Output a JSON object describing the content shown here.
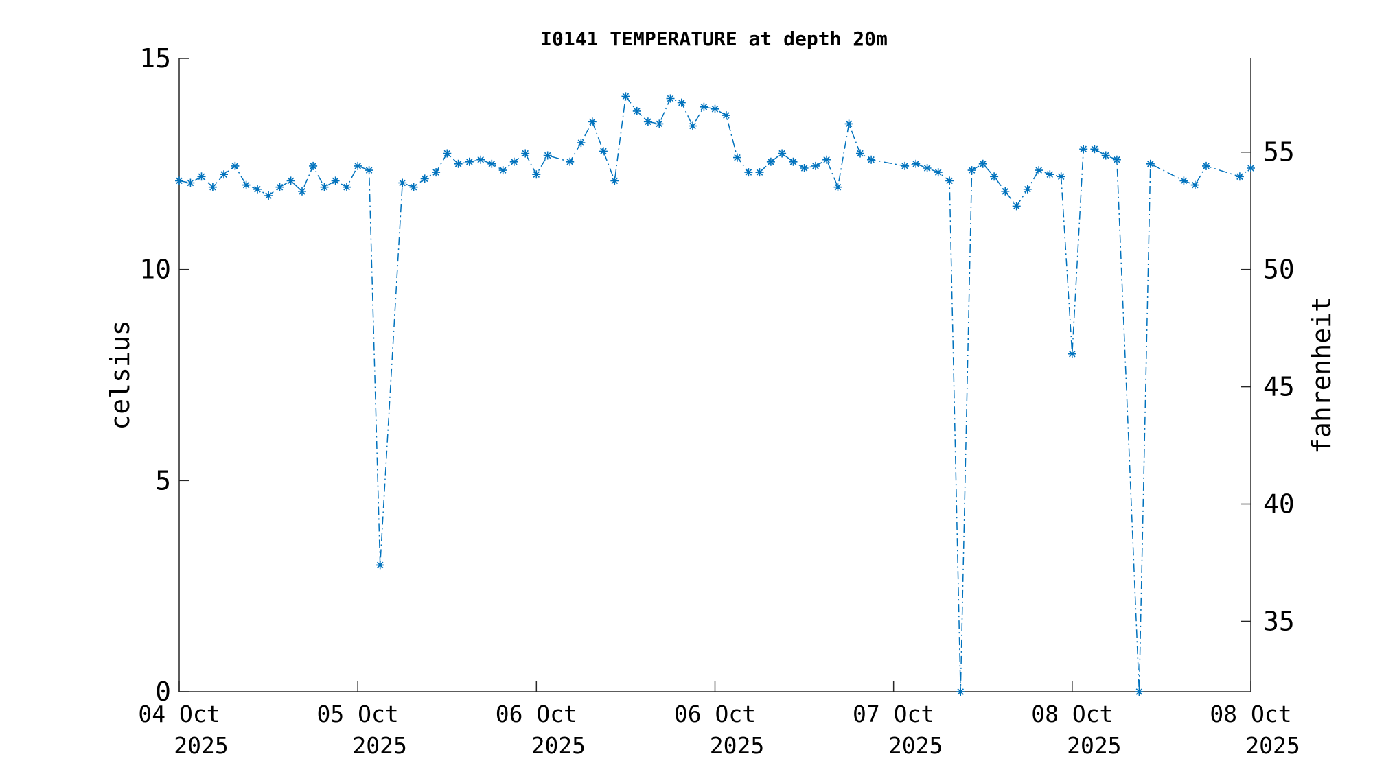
{
  "chart_data": {
    "type": "line",
    "title": "I0141 TEMPERATURE at depth 20m",
    "ylabel": "celsius",
    "ylabel_right": "fahrenheit",
    "ylim": [
      0,
      15
    ],
    "yticks": [
      "0",
      "5",
      "10",
      "15"
    ],
    "ylim_right": [
      32,
      59
    ],
    "yticks_right": [
      "35",
      "40",
      "45",
      "50",
      "55"
    ],
    "xticks": [
      {
        "day": "04 Oct",
        "year": "2025"
      },
      {
        "day": "05 Oct",
        "year": "2025"
      },
      {
        "day": "06 Oct",
        "year": "2025"
      },
      {
        "day": "06 Oct",
        "year": "2025"
      },
      {
        "day": "07 Oct",
        "year": "2025"
      },
      {
        "day": "08 Oct",
        "year": "2025"
      },
      {
        "day": "08 Oct",
        "year": "2025"
      }
    ],
    "grid": false,
    "series_color": "#0072BD",
    "marker": "asterisk",
    "line_style": "dash-dot",
    "series": [
      {
        "x": [
          0,
          0.063,
          0.125,
          0.188,
          0.25,
          0.313,
          0.375,
          0.438,
          0.5,
          0.563,
          0.625,
          0.688,
          0.75,
          0.813,
          0.875,
          0.938,
          1.0,
          1.063,
          1.125,
          1.25,
          1.313,
          1.375,
          1.438,
          1.5,
          1.563,
          1.625,
          1.688,
          1.75,
          1.813,
          1.875,
          1.938,
          2.0,
          2.063,
          2.188,
          2.25,
          2.313,
          2.375,
          2.438,
          2.5,
          2.563,
          2.625,
          2.688,
          2.75,
          2.813,
          2.875,
          2.938,
          3.0,
          3.063,
          3.125,
          3.188,
          3.25,
          3.313,
          3.375,
          3.438,
          3.5,
          3.563,
          3.625,
          3.688,
          3.75,
          3.813,
          3.875,
          4.063,
          4.125,
          4.188,
          4.25,
          4.313,
          4.375,
          4.438,
          4.5,
          4.563,
          4.625,
          4.688,
          4.75,
          4.813,
          4.875,
          4.938,
          5.0,
          5.063,
          5.125,
          5.188,
          5.25,
          5.375,
          5.438,
          5.625,
          5.688,
          5.75,
          5.938,
          6.0
        ],
        "y": [
          12.1,
          12.05,
          12.2,
          11.95,
          12.25,
          12.45,
          12.0,
          11.9,
          11.75,
          11.95,
          12.1,
          11.85,
          12.45,
          11.95,
          12.1,
          11.95,
          12.45,
          12.35,
          3.0,
          12.05,
          11.95,
          12.15,
          12.3,
          12.75,
          12.5,
          12.55,
          12.6,
          12.5,
          12.35,
          12.55,
          12.75,
          12.25,
          12.7,
          12.55,
          13.0,
          13.5,
          12.8,
          12.1,
          14.1,
          13.75,
          13.5,
          13.45,
          14.05,
          13.95,
          13.4,
          13.85,
          13.8,
          13.65,
          12.65,
          12.3,
          12.3,
          12.55,
          12.75,
          12.55,
          12.4,
          12.45,
          12.6,
          11.95,
          13.45,
          12.75,
          12.6,
          12.45,
          12.5,
          12.4,
          12.3,
          12.1,
          0.0,
          12.35,
          12.5,
          12.2,
          11.85,
          11.5,
          11.9,
          12.35,
          12.25,
          12.2,
          8.0,
          12.85,
          12.85,
          12.7,
          12.6,
          0.0,
          12.5,
          12.1,
          12.0,
          12.45,
          12.2,
          12.4
        ]
      }
    ]
  }
}
